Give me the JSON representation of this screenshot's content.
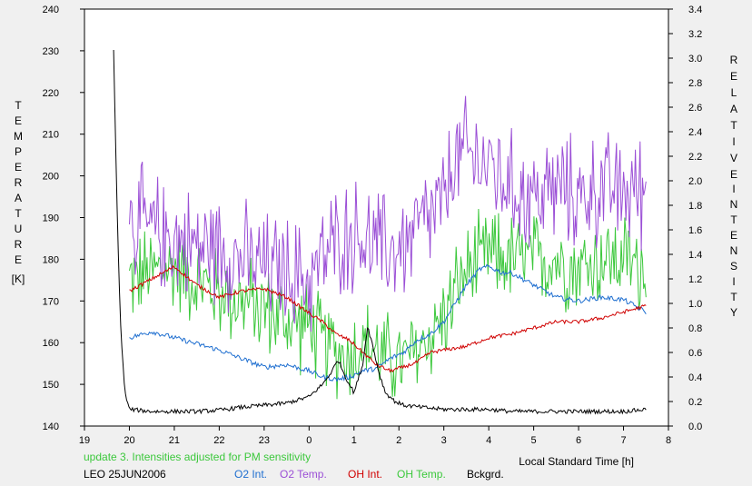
{
  "chart_data": {
    "type": "line",
    "xlabel": "Local Standard Time [h]",
    "x_ticks": [
      "19",
      "20",
      "21",
      "22",
      "23",
      "0",
      "1",
      "2",
      "3",
      "4",
      "5",
      "6",
      "7",
      "8"
    ],
    "xlim": [
      19,
      32
    ],
    "left_axis": {
      "label_letters": [
        "T",
        "E",
        "M",
        "P",
        "E",
        "R",
        "A",
        "T",
        "U",
        "R",
        "E"
      ],
      "unit": "[K]",
      "ylim": [
        140,
        240
      ],
      "ticks": [
        "140",
        "150",
        "160",
        "170",
        "180",
        "190",
        "200",
        "210",
        "220",
        "230",
        "240"
      ]
    },
    "right_axis": {
      "label_letters_1": [
        "R",
        "E",
        "L",
        "A",
        "T",
        "I",
        "V",
        "E"
      ],
      "label_letters_2": [
        "I",
        "N",
        "T",
        "E",
        "N",
        "S",
        "I",
        "T",
        "Y"
      ],
      "ylim": [
        0,
        3.4
      ],
      "ticks": [
        "0.0",
        "0.2",
        "0.4",
        "0.6",
        "0.8",
        "1.0",
        "1.2",
        "1.4",
        "1.6",
        "1.8",
        "2.0",
        "2.2",
        "2.4",
        "2.6",
        "2.8",
        "3.0",
        "3.2",
        "3.4"
      ]
    },
    "note": "update 3. Intensities adjusted for PM sensitivity",
    "station": "LEO 25JUN2006",
    "legend": [
      {
        "name": "O2 Int.",
        "color": "#1f6fd0"
      },
      {
        "name": "O2 Temp.",
        "color": "#9b4fd6"
      },
      {
        "name": "OH Int.",
        "color": "#d00000"
      },
      {
        "name": "OH Temp.",
        "color": "#3cc83c"
      },
      {
        "name": "Bckgrd.",
        "color": "#000000"
      }
    ],
    "series": [
      {
        "name": "O2 Temp.",
        "axis": "left",
        "color": "#9b4fd6",
        "x": [
          20.0,
          20.5,
          21.0,
          21.5,
          22.0,
          22.5,
          23.0,
          23.5,
          24.0,
          24.3,
          24.6,
          24.9,
          25.2,
          25.5,
          25.8,
          26.1,
          26.4,
          26.7,
          27.0,
          27.2,
          27.5,
          28.0,
          28.5,
          29.0,
          29.5,
          30.0,
          30.5,
          31.0,
          31.5
        ],
        "y": [
          190,
          187,
          185,
          183,
          183,
          180,
          178,
          177,
          175,
          180,
          184,
          186,
          185,
          183,
          182,
          183,
          187,
          190,
          193,
          203,
          205,
          203,
          197,
          195,
          197,
          195,
          197,
          196,
          197
        ],
        "noise": 11
      },
      {
        "name": "OH Temp.",
        "axis": "left",
        "color": "#3cc83c",
        "x": [
          20.0,
          20.5,
          21.0,
          21.5,
          22.0,
          22.5,
          23.0,
          23.5,
          24.0,
          24.3,
          24.6,
          24.9,
          25.2,
          25.5,
          25.8,
          26.1,
          26.4,
          26.7,
          27.0,
          27.2,
          27.5,
          28.0,
          28.5,
          29.0,
          29.5,
          30.0,
          30.5,
          31.0,
          31.5
        ],
        "y": [
          175,
          177,
          178,
          175,
          172,
          170,
          168,
          165,
          164,
          160,
          158,
          157,
          160,
          158,
          156,
          155,
          158,
          162,
          166,
          171,
          177,
          181,
          180,
          180,
          180,
          178,
          180,
          180,
          178
        ],
        "noise": 9
      },
      {
        "name": "O2 Int.",
        "axis": "right",
        "color": "#1f6fd0",
        "x": [
          20.0,
          20.5,
          21.0,
          21.5,
          22.0,
          22.5,
          23.0,
          23.5,
          24.0,
          24.3,
          24.6,
          24.9,
          25.2,
          25.5,
          25.8,
          26.1,
          26.4,
          26.7,
          27.0,
          27.2,
          27.5,
          27.8,
          28.0,
          28.3,
          28.5,
          29.0,
          29.5,
          30.0,
          30.5,
          31.0,
          31.5
        ],
        "y": [
          0.72,
          0.77,
          0.72,
          0.67,
          0.62,
          0.55,
          0.48,
          0.5,
          0.45,
          0.4,
          0.38,
          0.4,
          0.45,
          0.47,
          0.55,
          0.6,
          0.7,
          0.75,
          0.85,
          0.97,
          1.15,
          1.28,
          1.3,
          1.25,
          1.25,
          1.15,
          1.05,
          1.02,
          1.05,
          1.03,
          0.93
        ],
        "noise": 0.02
      },
      {
        "name": "OH Int.",
        "axis": "right",
        "color": "#d00000",
        "x": [
          20.0,
          20.5,
          21.0,
          21.5,
          22.0,
          22.5,
          23.0,
          23.5,
          24.0,
          24.3,
          24.6,
          24.9,
          25.2,
          25.5,
          25.8,
          26.1,
          26.4,
          26.7,
          27.0,
          27.5,
          28.0,
          28.5,
          29.0,
          29.5,
          30.0,
          30.5,
          31.0,
          31.5
        ],
        "y": [
          1.1,
          1.2,
          1.3,
          1.15,
          1.05,
          1.1,
          1.12,
          1.05,
          0.92,
          0.85,
          0.75,
          0.7,
          0.6,
          0.5,
          0.45,
          0.48,
          0.52,
          0.6,
          0.62,
          0.65,
          0.72,
          0.75,
          0.8,
          0.85,
          0.85,
          0.88,
          0.93,
          0.98
        ],
        "noise": 0.015
      },
      {
        "name": "Bckgrd.",
        "axis": "left",
        "color": "#000000",
        "x": [
          19.65,
          19.72,
          19.8,
          19.9,
          20.0,
          20.5,
          21.0,
          21.5,
          22.0,
          22.5,
          23.0,
          23.5,
          24.0,
          24.3,
          24.5,
          24.65,
          24.8,
          25.0,
          25.2,
          25.3,
          25.4,
          25.55,
          25.7,
          25.9,
          26.1,
          26.5,
          27.0,
          27.5,
          28.0,
          28.5,
          29.0,
          29.5,
          30.0,
          30.5,
          31.0,
          31.5
        ],
        "y": [
          230,
          195,
          165,
          148,
          144,
          143.5,
          143.5,
          143.5,
          143.8,
          144.5,
          145,
          145.5,
          147,
          150,
          153,
          156,
          152,
          148,
          155,
          164,
          160,
          153,
          148,
          146,
          145,
          144.5,
          144,
          144,
          144,
          143.5,
          143.5,
          143.5,
          143.5,
          143.5,
          143.5,
          144
        ],
        "noise": 0.5
      }
    ]
  }
}
